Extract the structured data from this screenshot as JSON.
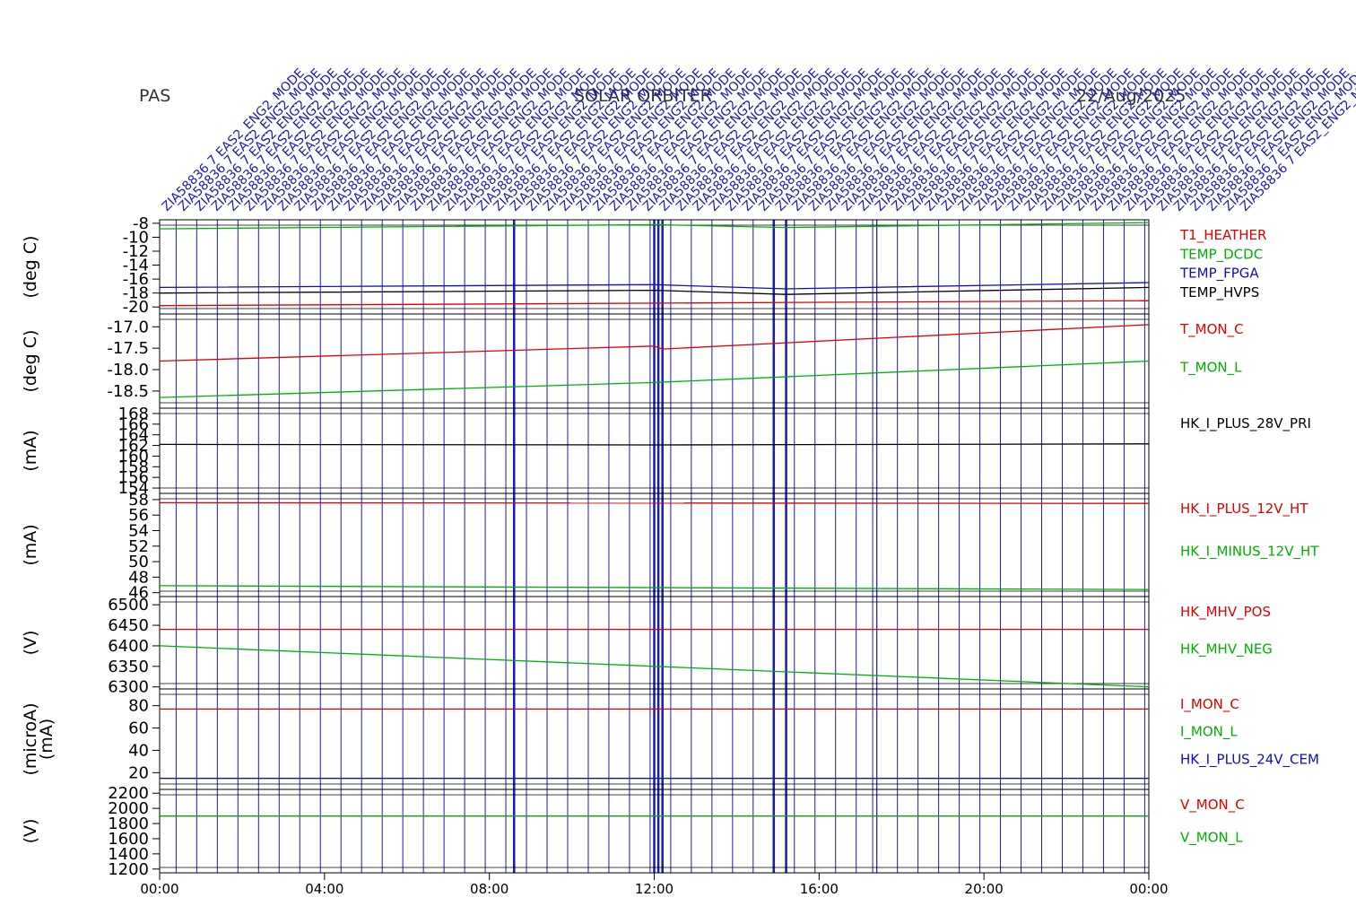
{
  "header": {
    "instrument": "PAS",
    "mission": "SOLAR ORBITER",
    "date": "22/Aug/2025"
  },
  "commands": {
    "label": "ZIA58836 7  EAS2_ENG2_MODE",
    "count": 66
  },
  "colors": {
    "red": "#e00000",
    "green": "#00b000",
    "blue": "#1010b0",
    "black": "#000000",
    "frame": "#000000",
    "marker": "#1a1ab4"
  },
  "chart_data": [
    {
      "type": "line",
      "ylabel": "(deg C)",
      "yticks": [
        "-8",
        "-10",
        "-12",
        "-14",
        "-16",
        "-18",
        "-20"
      ],
      "ylim": [
        -21,
        -7.5
      ],
      "x_unit": "hours",
      "series": [
        {
          "name": "T1_HEATHER",
          "color": "red",
          "x": [
            0,
            24
          ],
          "y": [
            -19.8,
            -19.1
          ]
        },
        {
          "name": "TEMP_DCDC",
          "color": "green",
          "x": [
            0,
            12,
            15.2,
            24
          ],
          "y": [
            -8.8,
            -8.2,
            -8.6,
            -7.9
          ]
        },
        {
          "name": "TEMP_FPGA",
          "color": "blue",
          "x": [
            0,
            12,
            15.2,
            24
          ],
          "y": [
            -17.2,
            -16.8,
            -17.4,
            -16.5
          ]
        },
        {
          "name": "TEMP_HVPS",
          "color": "black",
          "x": [
            0,
            12,
            15.2,
            24
          ],
          "y": [
            -18.0,
            -17.6,
            -18.2,
            -17.2
          ]
        }
      ]
    },
    {
      "type": "line",
      "ylabel": "(deg C)",
      "yticks": [
        "-17.0",
        "-17.5",
        "-18.0",
        "-18.5"
      ],
      "ylim": [
        -18.9,
        -16.7
      ],
      "x_unit": "hours",
      "series": [
        {
          "name": "T_MON_C",
          "color": "red",
          "x": [
            0,
            12,
            12.2,
            24
          ],
          "y": [
            -17.8,
            -17.45,
            -17.52,
            -16.95
          ]
        },
        {
          "name": "T_MON_L",
          "color": "green",
          "x": [
            0,
            12,
            24
          ],
          "y": [
            -18.65,
            -18.3,
            -17.8
          ]
        }
      ]
    },
    {
      "type": "line",
      "ylabel": "(mA)",
      "yticks": [
        "168",
        "166",
        "164",
        "162",
        "160",
        "158",
        "156",
        "154"
      ],
      "ylim": [
        153,
        169
      ],
      "x_unit": "hours",
      "series": [
        {
          "name": "HK_I_PLUS_28V_PRI",
          "color": "black",
          "x": [
            0,
            12,
            24
          ],
          "y": [
            162.2,
            162.1,
            162.3
          ]
        }
      ]
    },
    {
      "type": "line",
      "ylabel": "(mA)",
      "yticks": [
        "58",
        "56",
        "54",
        "52",
        "50",
        "48",
        "46"
      ],
      "ylim": [
        45.5,
        58.8
      ],
      "x_unit": "hours",
      "series": [
        {
          "name": "HK_I_PLUS_12V_HT",
          "color": "red",
          "x": [
            0,
            24
          ],
          "y": [
            57.6,
            57.5
          ]
        },
        {
          "name": "HK_I_MINUS_12V_HT",
          "color": "green",
          "x": [
            0,
            24
          ],
          "y": [
            46.9,
            46.4
          ]
        }
      ]
    },
    {
      "type": "line",
      "ylabel": "(V)",
      "yticks": [
        "6500",
        "6450",
        "6400",
        "6350",
        "6300"
      ],
      "ylim": [
        6295,
        6520
      ],
      "x_unit": "hours",
      "series": [
        {
          "name": "HK_MHV_POS",
          "color": "red",
          "x": [
            0,
            24
          ],
          "y": [
            6440,
            6440
          ]
        },
        {
          "name": "HK_MHV_NEG",
          "color": "green",
          "x": [
            0,
            24
          ],
          "y": [
            6400,
            6300
          ]
        }
      ]
    },
    {
      "type": "line",
      "ylabel": "(microA)\n(mA)",
      "yticks": [
        "80",
        "60",
        "40",
        "20"
      ],
      "ylim": [
        5,
        95
      ],
      "x_unit": "hours",
      "series": [
        {
          "name": "I_MON_C",
          "color": "red",
          "x": [
            0,
            24
          ],
          "y": [
            77,
            77
          ]
        },
        {
          "name": "I_MON_L",
          "color": "green",
          "x": [
            0,
            24
          ],
          "y": [
            15,
            15
          ]
        },
        {
          "name": "HK_I_PLUS_24V_CEM",
          "color": "blue",
          "x": [
            0,
            24
          ],
          "y": [
            15,
            15
          ]
        }
      ]
    },
    {
      "type": "line",
      "ylabel": "(V)",
      "yticks": [
        "2200",
        "2000",
        "1800",
        "1600",
        "1400",
        "1200"
      ],
      "ylim": [
        1150,
        2250
      ],
      "x_unit": "hours",
      "series": [
        {
          "name": "V_MON_C",
          "color": "red",
          "x": [
            0,
            24
          ],
          "y": [
            1900,
            1900
          ]
        },
        {
          "name": "V_MON_L",
          "color": "green",
          "x": [
            0,
            24
          ],
          "y": [
            1900,
            1900
          ]
        }
      ]
    }
  ],
  "x_axis": {
    "range_hours": [
      0,
      24
    ],
    "tick_labels": [
      "00:00",
      "04:00",
      "08:00",
      "12:00",
      "16:00",
      "20:00",
      "00:00"
    ]
  }
}
